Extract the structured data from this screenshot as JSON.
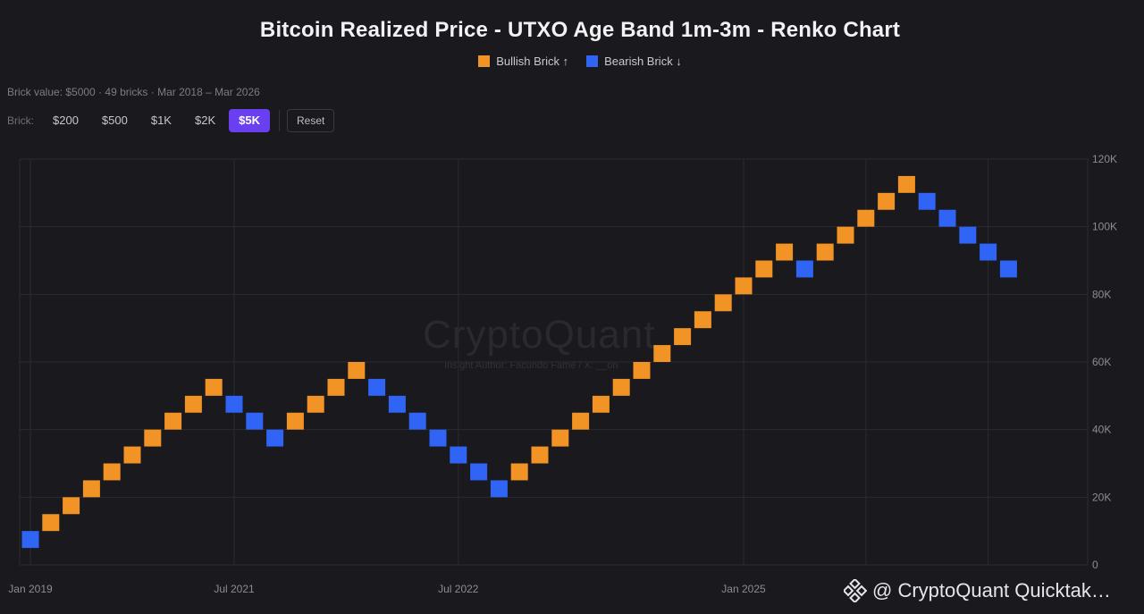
{
  "chart_data": {
    "type": "renko",
    "title": "Bitcoin Realized Price - UTXO Age Band 1m-3m - Renko Chart",
    "legend": [
      {
        "label": "Bullish Brick ↑",
        "color": "#f29325"
      },
      {
        "label": "Bearish Brick ↓",
        "color": "#2f64f5"
      }
    ],
    "brick_value": 5000,
    "brick_count": 49,
    "ylim": [
      0,
      120000
    ],
    "y_ticks": [
      {
        "value": 0,
        "label": "0"
      },
      {
        "value": 20000,
        "label": "20K"
      },
      {
        "value": 40000,
        "label": "40K"
      },
      {
        "value": 60000,
        "label": "60K"
      },
      {
        "value": 80000,
        "label": "80K"
      },
      {
        "value": 100000,
        "label": "100K"
      },
      {
        "value": 120000,
        "label": "120K"
      }
    ],
    "x_ticks": [
      {
        "index": 0,
        "label": "Jan 2019"
      },
      {
        "index": 10,
        "label": "Jul 2021"
      },
      {
        "index": 21,
        "label": "Jul 2022"
      },
      {
        "index": 35,
        "label": "Jan 2025"
      }
    ],
    "bricks": [
      {
        "dir": "down",
        "low": 5000,
        "high": 10000
      },
      {
        "dir": "up",
        "low": 10000,
        "high": 15000
      },
      {
        "dir": "up",
        "low": 15000,
        "high": 20000
      },
      {
        "dir": "up",
        "low": 20000,
        "high": 25000
      },
      {
        "dir": "up",
        "low": 25000,
        "high": 30000
      },
      {
        "dir": "up",
        "low": 30000,
        "high": 35000
      },
      {
        "dir": "up",
        "low": 35000,
        "high": 40000
      },
      {
        "dir": "up",
        "low": 40000,
        "high": 45000
      },
      {
        "dir": "up",
        "low": 45000,
        "high": 50000
      },
      {
        "dir": "up",
        "low": 50000,
        "high": 55000
      },
      {
        "dir": "down",
        "low": 45000,
        "high": 50000
      },
      {
        "dir": "down",
        "low": 40000,
        "high": 45000
      },
      {
        "dir": "down",
        "low": 35000,
        "high": 40000
      },
      {
        "dir": "up",
        "low": 40000,
        "high": 45000
      },
      {
        "dir": "up",
        "low": 45000,
        "high": 50000
      },
      {
        "dir": "up",
        "low": 50000,
        "high": 55000
      },
      {
        "dir": "up",
        "low": 55000,
        "high": 60000
      },
      {
        "dir": "down",
        "low": 50000,
        "high": 55000
      },
      {
        "dir": "down",
        "low": 45000,
        "high": 50000
      },
      {
        "dir": "down",
        "low": 40000,
        "high": 45000
      },
      {
        "dir": "down",
        "low": 35000,
        "high": 40000
      },
      {
        "dir": "down",
        "low": 30000,
        "high": 35000
      },
      {
        "dir": "down",
        "low": 25000,
        "high": 30000
      },
      {
        "dir": "down",
        "low": 20000,
        "high": 25000
      },
      {
        "dir": "up",
        "low": 25000,
        "high": 30000
      },
      {
        "dir": "up",
        "low": 30000,
        "high": 35000
      },
      {
        "dir": "up",
        "low": 35000,
        "high": 40000
      },
      {
        "dir": "up",
        "low": 40000,
        "high": 45000
      },
      {
        "dir": "up",
        "low": 45000,
        "high": 50000
      },
      {
        "dir": "up",
        "low": 50000,
        "high": 55000
      },
      {
        "dir": "up",
        "low": 55000,
        "high": 60000
      },
      {
        "dir": "up",
        "low": 60000,
        "high": 65000
      },
      {
        "dir": "up",
        "low": 65000,
        "high": 70000
      },
      {
        "dir": "up",
        "low": 70000,
        "high": 75000
      },
      {
        "dir": "up",
        "low": 75000,
        "high": 80000
      },
      {
        "dir": "up",
        "low": 80000,
        "high": 85000
      },
      {
        "dir": "up",
        "low": 85000,
        "high": 90000
      },
      {
        "dir": "up",
        "low": 90000,
        "high": 95000
      },
      {
        "dir": "down",
        "low": 85000,
        "high": 90000
      },
      {
        "dir": "up",
        "low": 90000,
        "high": 95000
      },
      {
        "dir": "up",
        "low": 95000,
        "high": 100000
      },
      {
        "dir": "up",
        "low": 100000,
        "high": 105000
      },
      {
        "dir": "up",
        "low": 105000,
        "high": 110000
      },
      {
        "dir": "up",
        "low": 110000,
        "high": 115000
      },
      {
        "dir": "down",
        "low": 105000,
        "high": 110000
      },
      {
        "dir": "down",
        "low": 100000,
        "high": 105000
      },
      {
        "dir": "down",
        "low": 95000,
        "high": 100000
      },
      {
        "dir": "down",
        "low": 90000,
        "high": 95000
      },
      {
        "dir": "down",
        "low": 85000,
        "high": 90000
      }
    ]
  },
  "info_text": "Brick value: $5000 · 49 bricks · Mar 2018 – Mar 2026",
  "controls": {
    "label": "Brick:",
    "options": [
      "$200",
      "$500",
      "$1K",
      "$2K",
      "$5K"
    ],
    "active": "$5K",
    "reset_label": "Reset"
  },
  "watermark": {
    "brand": "CryptoQuant",
    "sub": "Insight Author: Facundo Famé / X: __on"
  },
  "footer_brand": "@ CryptoQuant Quicktak…",
  "colors": {
    "bull": "#f29325",
    "bear": "#2f64f5",
    "grid": "#2b2a31",
    "axis_text": "#8d8c96",
    "active_button": "#6a3ff0"
  }
}
